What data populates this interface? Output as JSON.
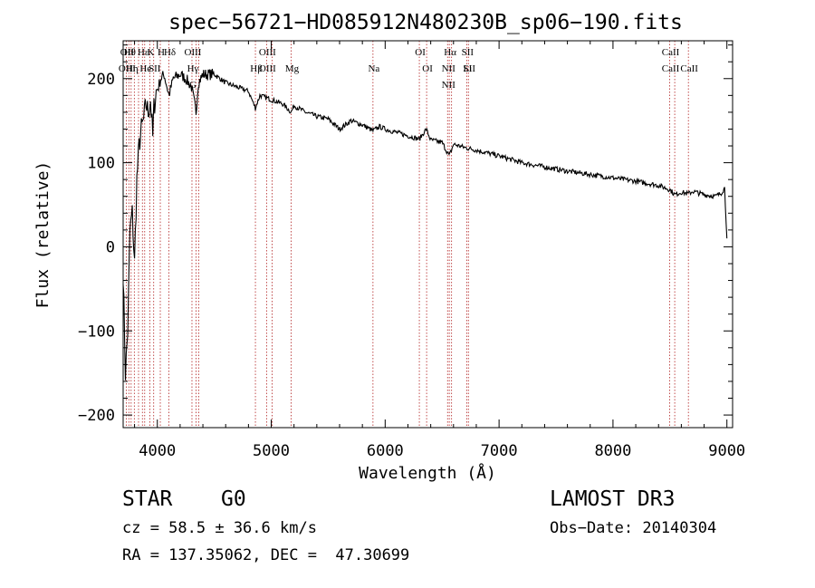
{
  "chart_data": {
    "type": "line",
    "title": "spec−56721−HD085912N480230B_sp06−190.fits",
    "xlabel": "Wavelength (Å)",
    "ylabel": "Flux (relative)",
    "xlim": [
      3700,
      9050
    ],
    "ylim": [
      -215,
      245
    ],
    "xticks": [
      4000,
      5000,
      6000,
      7000,
      8000,
      9000
    ],
    "xtick_labels": [
      "4000",
      "5000",
      "6000",
      "7000",
      "8000",
      "9000"
    ],
    "yticks": [
      -200,
      -100,
      0,
      100,
      200
    ],
    "ytick_labels": [
      "−200",
      "−100",
      "0",
      "100",
      "200"
    ],
    "series": [
      {
        "name": "spectrum",
        "color": "#000000",
        "x": [
          3700,
          3720,
          3740,
          3760,
          3780,
          3800,
          3820,
          3840,
          3860,
          3880,
          3900,
          3920,
          3940,
          3960,
          3970,
          3990,
          4010,
          4030,
          4060,
          4102,
          4140,
          4200,
          4250,
          4300,
          4340,
          4360,
          4400,
          4500,
          4600,
          4700,
          4800,
          4861,
          4900,
          5000,
          5100,
          5175,
          5200,
          5300,
          5400,
          5500,
          5600,
          5700,
          5800,
          5893,
          5950,
          6000,
          6100,
          6200,
          6300,
          6360,
          6400,
          6500,
          6563,
          6600,
          6700,
          6800,
          7000,
          7200,
          7400,
          7600,
          7800,
          8000,
          8200,
          8400,
          8500,
          8542,
          8600,
          8662,
          8700,
          8800,
          8900,
          8950,
          8980,
          9000
        ],
        "y": [
          -30,
          -150,
          -100,
          20,
          40,
          -20,
          80,
          120,
          140,
          150,
          170,
          160,
          175,
          130,
          165,
          185,
          190,
          200,
          205,
          180,
          200,
          205,
          200,
          190,
          160,
          195,
          205,
          205,
          195,
          190,
          185,
          165,
          180,
          175,
          170,
          160,
          168,
          160,
          155,
          152,
          140,
          150,
          145,
          138,
          143,
          140,
          136,
          132,
          128,
          140,
          127,
          124,
          108,
          122,
          118,
          115,
          108,
          100,
          95,
          90,
          86,
          82,
          78,
          73,
          68,
          62,
          65,
          63,
          66,
          62,
          60,
          64,
          70,
          10
        ]
      }
    ],
    "lines": [
      {
        "wave": 3727,
        "top": [
          "OII"
        ],
        "bottom": [
          "OIII"
        ]
      },
      {
        "wave": 3750,
        "top": [
          "Hθ"
        ],
        "bottom": []
      },
      {
        "wave": 3770,
        "top": [],
        "bottom": [
          "Hη"
        ]
      },
      {
        "wave": 3798,
        "top": [],
        "bottom": []
      },
      {
        "wave": 3835,
        "top": [],
        "bottom": []
      },
      {
        "wave": 3869,
        "top": [
          "Hε"
        ],
        "bottom": []
      },
      {
        "wave": 3889,
        "top": [],
        "bottom": [
          "He"
        ]
      },
      {
        "wave": 3934,
        "top": [
          "K"
        ],
        "bottom": []
      },
      {
        "wave": 3968,
        "top": [],
        "bottom": [
          "SII"
        ]
      },
      {
        "wave": 4026,
        "top": [
          "H"
        ],
        "bottom": []
      },
      {
        "wave": 4102,
        "top": [
          "Hδ"
        ],
        "bottom": []
      },
      {
        "wave": 4304,
        "top": [
          "OIII"
        ],
        "bottom": [
          "Hγ",
          "G"
        ]
      },
      {
        "wave": 4340,
        "top": [],
        "bottom": []
      },
      {
        "wave": 4363,
        "top": [],
        "bottom": []
      },
      {
        "wave": 4861,
        "top": [],
        "bottom": [
          "Hβ"
        ]
      },
      {
        "wave": 4959,
        "top": [
          "OIII"
        ],
        "bottom": [
          "OIII"
        ]
      },
      {
        "wave": 5007,
        "top": [],
        "bottom": []
      },
      {
        "wave": 5175,
        "top": [],
        "bottom": [
          "Mg"
        ]
      },
      {
        "wave": 5893,
        "top": [],
        "bottom": [
          "Na"
        ]
      },
      {
        "wave": 6300,
        "top": [
          "OI"
        ],
        "bottom": []
      },
      {
        "wave": 6364,
        "top": [],
        "bottom": [
          "OI"
        ]
      },
      {
        "wave": 6548,
        "top": [],
        "bottom": [
          "NII",
          "NII"
        ]
      },
      {
        "wave": 6563,
        "top": [
          "Hα"
        ],
        "bottom": []
      },
      {
        "wave": 6583,
        "top": [],
        "bottom": []
      },
      {
        "wave": 6716,
        "top": [
          "SII"
        ],
        "bottom": [
          "Li"
        ]
      },
      {
        "wave": 6731,
        "top": [],
        "bottom": [
          "SII"
        ]
      },
      {
        "wave": 8498,
        "top": [
          "CaII"
        ],
        "bottom": [
          "CaII"
        ]
      },
      {
        "wave": 8542,
        "top": [],
        "bottom": []
      },
      {
        "wave": 8662,
        "top": [],
        "bottom": [
          "CaII"
        ]
      }
    ]
  },
  "info": {
    "object_class": "STAR",
    "subclass": "G0",
    "survey": "LAMOST DR3",
    "cz": "cz = 58.5 ± 36.6 km/s",
    "obs_date": "Obs−Date: 20140304",
    "coords": "RA = 137.35062, DEC =  47.30699"
  },
  "colors": {
    "line": "#000000",
    "marker": "#b22222",
    "background": "#ffffff"
  }
}
